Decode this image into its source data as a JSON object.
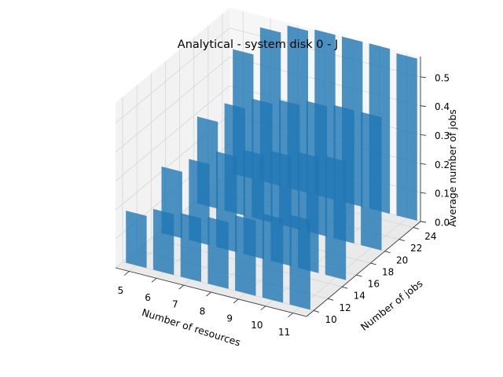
{
  "chart_data": {
    "type": "bar3d",
    "title": "Analytical - system disk 0 - J",
    "xlabel": "Number of resources",
    "ylabel": "Number of jobs",
    "zlabel": "Average number of jobs",
    "x_ticks": [
      "5",
      "6",
      "7",
      "8",
      "9",
      "10",
      "11"
    ],
    "y_ticks": [
      "10",
      "12",
      "14",
      "16",
      "18",
      "20",
      "22",
      "24"
    ],
    "z_ticks": [
      "0.0",
      "0.1",
      "0.2",
      "0.3",
      "0.4",
      "0.5"
    ],
    "xlim": [
      4.5,
      11.5
    ],
    "ylim": [
      9,
      25
    ],
    "zlim": [
      0,
      0.57
    ],
    "grid": true,
    "bar_color": "#1f77b4",
    "bars": [
      {
        "resources": 5,
        "jobs": 10,
        "value": 0.18
      },
      {
        "resources": 6,
        "jobs": 10,
        "value": 0.21
      },
      {
        "resources": 7,
        "jobs": 10,
        "value": 0.22
      },
      {
        "resources": 8,
        "jobs": 10,
        "value": 0.23
      },
      {
        "resources": 9,
        "jobs": 10,
        "value": 0.26
      },
      {
        "resources": 10,
        "jobs": 10,
        "value": 0.29
      },
      {
        "resources": 11,
        "jobs": 10,
        "value": 0.31
      },
      {
        "resources": 5,
        "jobs": 15,
        "value": 0.23
      },
      {
        "resources": 6,
        "jobs": 15,
        "value": 0.28
      },
      {
        "resources": 7,
        "jobs": 15,
        "value": 0.33
      },
      {
        "resources": 8,
        "jobs": 15,
        "value": 0.36
      },
      {
        "resources": 9,
        "jobs": 15,
        "value": 0.38
      },
      {
        "resources": 10,
        "jobs": 15,
        "value": 0.4
      },
      {
        "resources": 11,
        "jobs": 15,
        "value": 0.41
      },
      {
        "resources": 5,
        "jobs": 20,
        "value": 0.3
      },
      {
        "resources": 6,
        "jobs": 20,
        "value": 0.37
      },
      {
        "resources": 7,
        "jobs": 20,
        "value": 0.41
      },
      {
        "resources": 8,
        "jobs": 20,
        "value": 0.43
      },
      {
        "resources": 9,
        "jobs": 20,
        "value": 0.45
      },
      {
        "resources": 10,
        "jobs": 20,
        "value": 0.46
      },
      {
        "resources": 11,
        "jobs": 20,
        "value": 0.46
      },
      {
        "resources": 5,
        "jobs": 25,
        "value": 0.43
      },
      {
        "resources": 6,
        "jobs": 25,
        "value": 0.53
      },
      {
        "resources": 7,
        "jobs": 25,
        "value": 0.56
      },
      {
        "resources": 8,
        "jobs": 25,
        "value": 0.57
      },
      {
        "resources": 9,
        "jobs": 25,
        "value": 0.57
      },
      {
        "resources": 10,
        "jobs": 25,
        "value": 0.57
      },
      {
        "resources": 11,
        "jobs": 25,
        "value": 0.56
      }
    ]
  }
}
